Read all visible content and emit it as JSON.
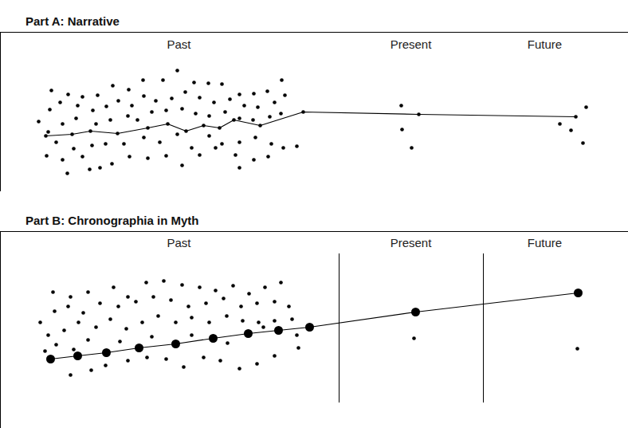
{
  "chart_data": [
    {
      "type": "scatter",
      "title": "Part A: Narrative",
      "tick_labels": false,
      "xlim": [
        0,
        788
      ],
      "ylim": [
        240,
        40
      ],
      "annotations": [
        {
          "text": "Past",
          "x": 224,
          "y": 56
        },
        {
          "text": "Present",
          "x": 515,
          "y": 56
        },
        {
          "text": "Future",
          "x": 683,
          "y": 56
        }
      ],
      "series": [
        {
          "type": "scatter",
          "marker": "dot",
          "x": [
            64,
            85,
            103,
            122,
            141,
            161,
            179,
            204,
            222,
            243,
            261,
            278,
            300,
            318,
            335,
            353,
            48,
            62,
            75,
            97,
            116,
            133,
            148,
            165,
            180,
            195,
            215,
            232,
            250,
            268,
            288,
            306,
            323,
            344,
            357,
            78,
            95,
            120,
            138,
            160,
            172,
            190,
            208,
            228,
            245,
            262,
            282,
            300,
            317,
            338,
            352,
            70,
            92,
            115,
            132,
            155,
            180,
            200,
            222,
            240,
            262,
            278,
            300,
            320,
            340,
            355,
            372,
            58,
            78,
            103,
            125,
            140,
            162,
            185,
            208,
            228,
            250,
            270,
            295,
            318,
            336,
            300,
            84,
            112,
            60,
            503,
            504,
            516,
            735,
            702,
            716,
            731
          ],
          "y": [
            113,
            118,
            121,
            119,
            107,
            112,
            100,
            100,
            88,
            103,
            104,
            105,
            118,
            117,
            114,
            100,
            152,
            137,
            128,
            132,
            138,
            133,
            126,
            132,
            120,
            126,
            123,
            115,
            122,
            128,
            124,
            132,
            134,
            128,
            119,
            155,
            148,
            155,
            150,
            145,
            150,
            140,
            138,
            136,
            142,
            145,
            140,
            148,
            150,
            146,
            142,
            178,
            186,
            182,
            180,
            180,
            172,
            178,
            168,
            185,
            170,
            180,
            178,
            172,
            180,
            185,
            183,
            195,
            200,
            196,
            210,
            205,
            196,
            198,
            195,
            207,
            194,
            185,
            194,
            200,
            196,
            210,
            217,
            212,
            165,
            132,
            162,
            185,
            134,
            155,
            163,
            179
          ]
        },
        {
          "type": "line",
          "marker": "dot",
          "x": [
            57,
            90,
            113,
            147,
            185,
            210,
            233,
            255,
            275,
            293,
            326,
            380,
            525,
            722
          ],
          "y": [
            170,
            168,
            164,
            167,
            160,
            155,
            164,
            157,
            160,
            150,
            157,
            140,
            143,
            146
          ]
        }
      ]
    },
    {
      "type": "scatter",
      "title": "Part B: Chronographia in Myth",
      "tick_labels": false,
      "xlim": [
        0,
        788
      ],
      "ylim": [
        537,
        290
      ],
      "annotations": [
        {
          "text": "Past",
          "x": 224,
          "y": 305
        },
        {
          "text": "Present",
          "x": 515,
          "y": 305
        },
        {
          "text": "Future",
          "x": 683,
          "y": 305
        }
      ],
      "dividers": {
        "x": [
          425,
          606
        ],
        "y": [
          318,
          505
        ]
      },
      "series": [
        {
          "type": "scatter",
          "marker": "dot",
          "x": [
            66,
            88,
            110,
            142,
            160,
            183,
            205,
            228,
            250,
            270,
            292,
            312,
            332,
            352,
            50,
            68,
            85,
            104,
            125,
            148,
            170,
            192,
            214,
            236,
            258,
            280,
            302,
            322,
            344,
            362,
            60,
            80,
            98,
            120,
            138,
            158,
            178,
            198,
            220,
            240,
            262,
            284,
            304,
            324,
            344,
            366,
            70,
            110,
            150,
            190,
            240,
            285,
            330,
            372,
            88,
            114,
            132,
            160,
            184,
            208,
            230,
            255,
            276,
            300,
            322,
            344,
            374,
            92,
            56,
            519,
            724
          ],
          "y": [
            366,
            372,
            366,
            360,
            372,
            354,
            352,
            357,
            360,
            364,
            358,
            368,
            360,
            354,
            404,
            390,
            384,
            392,
            380,
            384,
            378,
            372,
            376,
            384,
            380,
            374,
            384,
            380,
            378,
            384,
            420,
            414,
            404,
            410,
            400,
            412,
            404,
            396,
            404,
            398,
            404,
            396,
            402,
            404,
            402,
            400,
            432,
            426,
            428,
            422,
            420,
            430,
            410,
            420,
            470,
            464,
            458,
            452,
            448,
            450,
            460,
            448,
            452,
            462,
            456,
            446,
            436,
            438,
            440,
            424,
            437
          ]
        },
        {
          "type": "line",
          "marker": "large_dot",
          "x": [
            63,
            97,
            133,
            174,
            220,
            267,
            311,
            349,
            388,
            521,
            725
          ],
          "y": [
            450,
            446,
            442,
            436,
            431,
            424,
            418,
            414,
            410,
            391,
            367
          ]
        }
      ]
    }
  ]
}
